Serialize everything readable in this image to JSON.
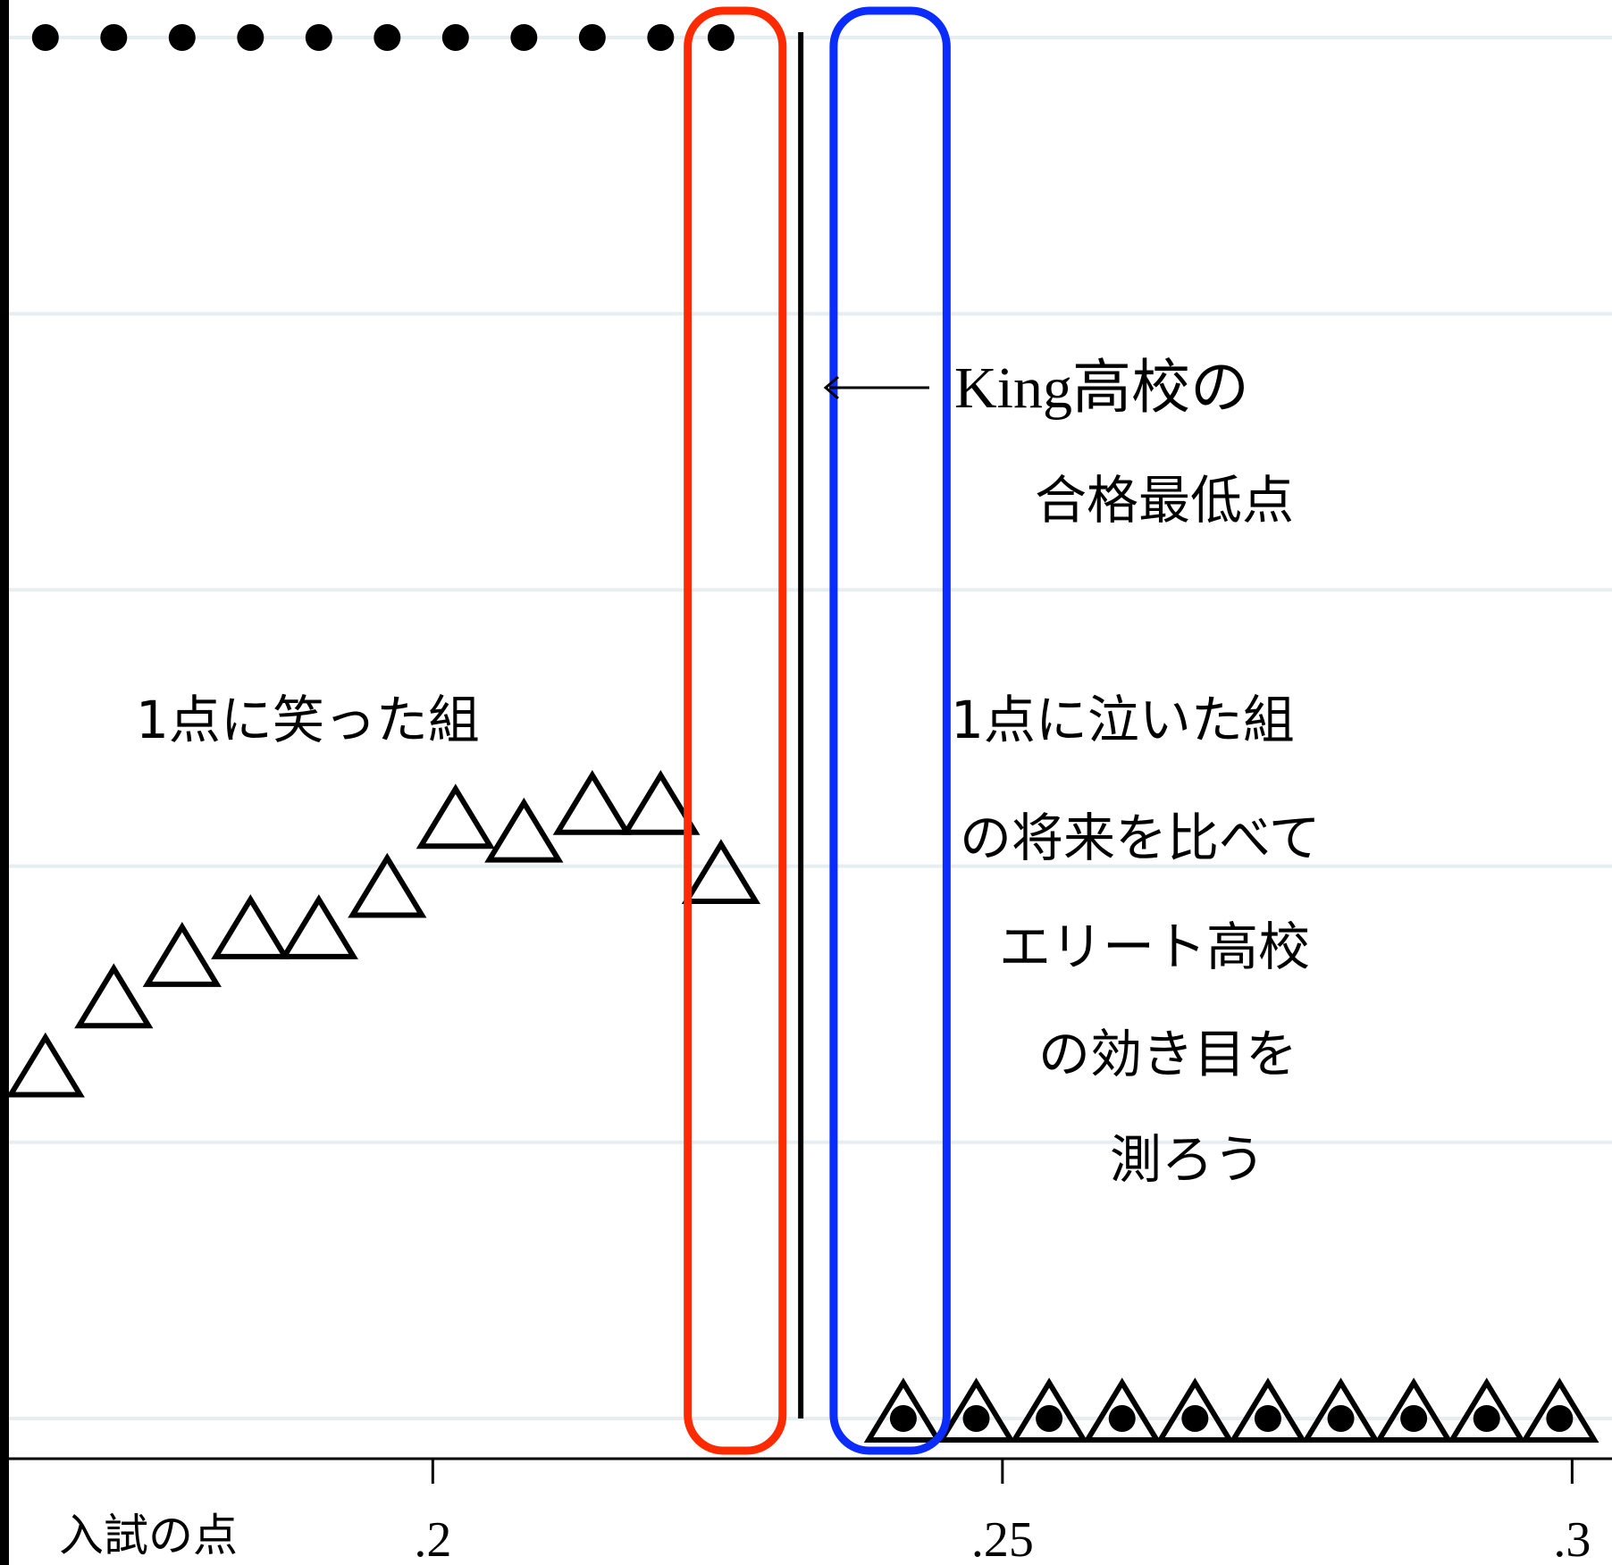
{
  "chart_data": {
    "type": "scatter",
    "xlabel": "入試の点",
    "ylabel": "",
    "xlim": [
      0.1628,
      0.3035
    ],
    "ylim": [
      0,
      1
    ],
    "x_ticks": [
      {
        "value": 0.2,
        "label": ".2"
      },
      {
        "value": 0.25,
        "label": ".25"
      },
      {
        "value": 0.3,
        "label": ".3"
      }
    ],
    "grid": true,
    "cutoff": 0.2323,
    "series": [
      {
        "marker": "dot",
        "x": [
          0.166,
          0.172,
          0.178,
          0.184,
          0.19,
          0.196,
          0.202,
          0.208,
          0.214,
          0.22,
          0.2253,
          0.2413,
          0.2477,
          0.2541,
          0.2605,
          0.2669,
          0.2733,
          0.2797,
          0.2861,
          0.2925,
          0.2989
        ],
        "y": [
          1,
          1,
          1,
          1,
          1,
          1,
          1,
          1,
          1,
          1,
          1,
          0,
          0,
          0,
          0,
          0,
          0,
          0,
          0,
          0,
          0
        ]
      },
      {
        "marker": "triangle",
        "x": [
          0.166,
          0.172,
          0.178,
          0.184,
          0.19,
          0.196,
          0.202,
          0.208,
          0.214,
          0.22,
          0.2253,
          0.2413,
          0.2477,
          0.2541,
          0.2605,
          0.2669,
          0.2733,
          0.2797,
          0.2861,
          0.2925,
          0.2989
        ],
        "y": [
          0.25,
          0.3,
          0.33,
          0.35,
          0.35,
          0.38,
          0.43,
          0.42,
          0.44,
          0.44,
          0.39,
          0.0,
          0.0,
          0.0,
          0.0,
          0.0,
          0.0,
          0.0,
          0.0,
          0.0,
          0.0
        ]
      }
    ],
    "highlights": [
      {
        "side": "below",
        "color": "#ff2a00",
        "label": "1点に笑った組"
      },
      {
        "side": "above",
        "color": "#0a2cff",
        "label": "1点に泣いた組"
      }
    ],
    "annotations": {
      "cutoff_label_lines": [
        "King高校の",
        "合格最低点"
      ],
      "explanation_lines": [
        "の将来を比べて",
        "エリート高校",
        "の効き目を",
        "測ろう"
      ]
    }
  }
}
